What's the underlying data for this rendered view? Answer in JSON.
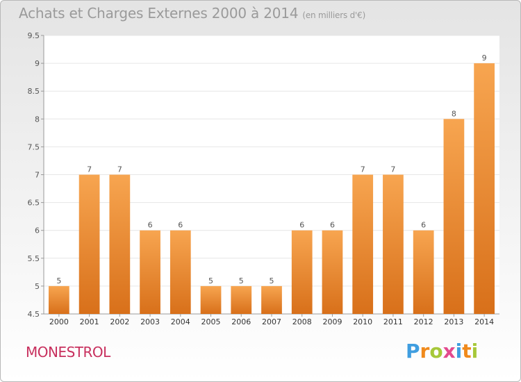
{
  "chart_data": {
    "type": "bar",
    "title": "Achats et Charges Externes 2000 à 2014",
    "subtitle": "(en milliers d'€)",
    "categories": [
      "2000",
      "2001",
      "2002",
      "2003",
      "2004",
      "2005",
      "2006",
      "2007",
      "2008",
      "2009",
      "2010",
      "2011",
      "2012",
      "2013",
      "2014"
    ],
    "values": [
      5,
      7,
      7,
      6,
      6,
      5,
      5,
      5,
      6,
      6,
      7,
      7,
      6,
      8,
      9
    ],
    "yticks": [
      "4.5",
      "5",
      "5.5",
      "6",
      "6.5",
      "7",
      "7.5",
      "8",
      "8.5",
      "9",
      "9.5"
    ],
    "ylim": [
      4.5,
      9.5
    ],
    "grid": true,
    "bar_color": "#f0862c"
  },
  "town": "MONESTROL",
  "logo": {
    "letters": [
      "P",
      "r",
      "o",
      "x",
      "i",
      "t",
      "i"
    ],
    "colors": [
      "#3f9ee0",
      "#f08a1c",
      "#a6c83a",
      "#e34a8e",
      "#3f9ee0",
      "#f08a1c",
      "#a6c83a"
    ]
  }
}
